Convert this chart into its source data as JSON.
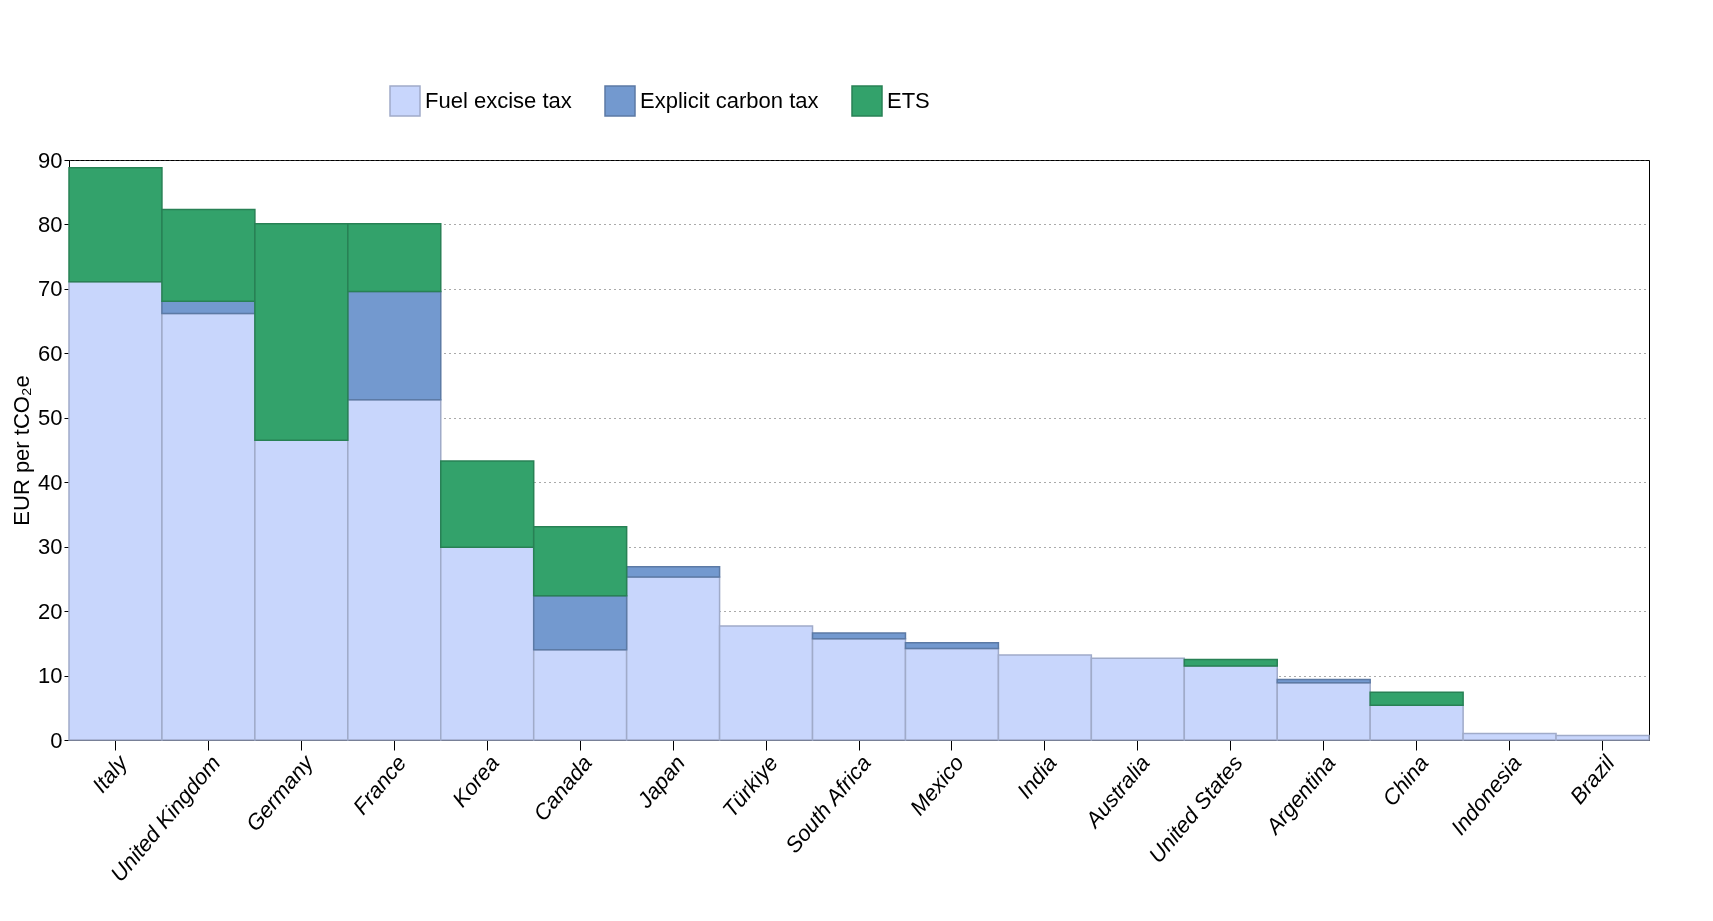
{
  "chart_data": {
    "type": "bar",
    "stacked": true,
    "ylabel": "EUR per tCO₂e",
    "categories": [
      "Italy",
      "United Kingdom",
      "Germany",
      "France",
      "Korea",
      "Canada",
      "Japan",
      "Türkiye",
      "South Africa",
      "Mexico",
      "India",
      "Australia",
      "United States",
      "Argentina",
      "China",
      "Indonesia",
      "Brazil"
    ],
    "series": [
      {
        "name": "Fuel excise tax",
        "color": "#c8d6fc",
        "values": [
          71.1,
          66.2,
          46.5,
          52.8,
          29.9,
          14.0,
          25.3,
          17.7,
          15.7,
          14.2,
          13.2,
          12.7,
          11.5,
          8.9,
          5.4,
          1.0,
          0.7
        ]
      },
      {
        "name": "Explicit carbon tax",
        "color": "#7399cf",
        "values": [
          0,
          1.9,
          0,
          16.8,
          0,
          8.4,
          1.6,
          0,
          0.9,
          0.9,
          0,
          0,
          0,
          0.5,
          0,
          0,
          0
        ]
      },
      {
        "name": "ETS",
        "color": "#33a26b",
        "values": [
          17.7,
          14.2,
          33.6,
          10.5,
          13.4,
          10.7,
          0,
          0,
          0,
          0,
          0,
          0,
          1.0,
          0,
          2.0,
          0,
          0
        ]
      }
    ],
    "ylim": [
      0,
      90
    ],
    "yticks": [
      0,
      10,
      20,
      30,
      40,
      50,
      60,
      70,
      80,
      90
    ],
    "grid": "y",
    "legend": "top"
  }
}
